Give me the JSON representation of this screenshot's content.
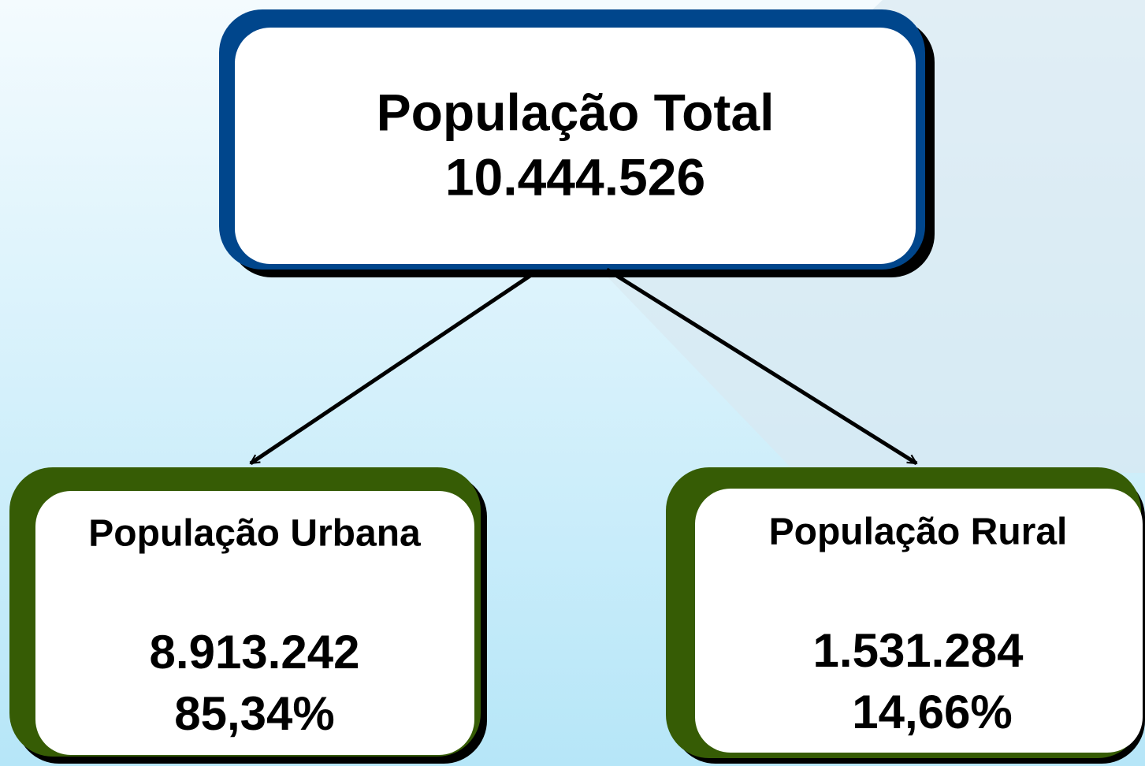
{
  "nodes": [
    {
      "label": "População Total",
      "value": "10.444.526"
    },
    {
      "label": "População Urbana",
      "value": "8.913.242",
      "percent": "85,34%"
    },
    {
      "label": "População Rural",
      "value": "1.531.284",
      "percent": "14,66%"
    }
  ]
}
